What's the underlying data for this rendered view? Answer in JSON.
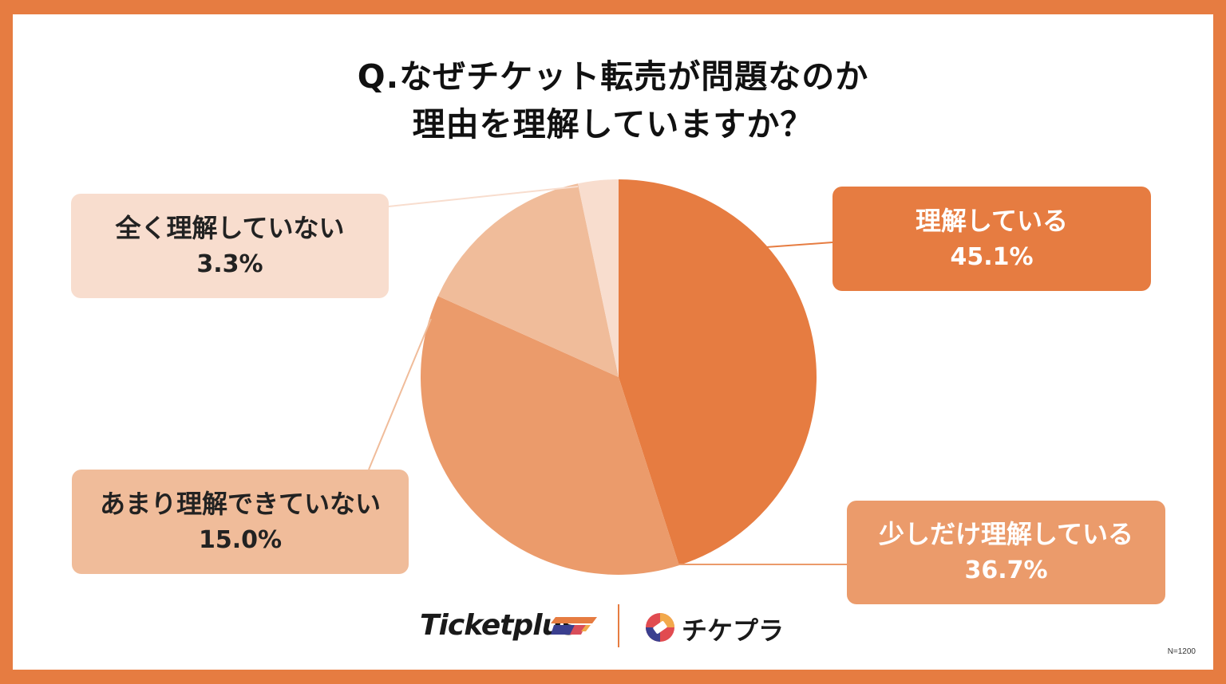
{
  "title": {
    "line1": "Q.なぜチケット転売が問題なのか",
    "line2": "理由を理解していますか？"
  },
  "chart_data": {
    "type": "pie",
    "title": "Q.なぜチケット転売が問題なのか 理由を理解していますか？",
    "slices": [
      {
        "label": "理解している",
        "value": 45.1,
        "value_label": "45.1%",
        "color": "#E67C41"
      },
      {
        "label": "少しだけ理解している",
        "value": 36.7,
        "value_label": "36.7%",
        "color": "#EB9B6B"
      },
      {
        "label": "あまり理解できていない",
        "value": 15.0,
        "value_label": "15.0%",
        "color": "#F0BC9A"
      },
      {
        "label": "全く理解していない",
        "value": 3.3,
        "value_label": "3.3%",
        "color": "#F8DDCE"
      }
    ],
    "start": "12 o'clock, clockwise"
  },
  "brands": {
    "ticketplus": "Ticketplus",
    "chikepura": "チケプラ"
  },
  "note": "N=1200",
  "colors": {
    "frame": "#E67C41",
    "background": "#FFFFFF",
    "text": "#111111"
  }
}
